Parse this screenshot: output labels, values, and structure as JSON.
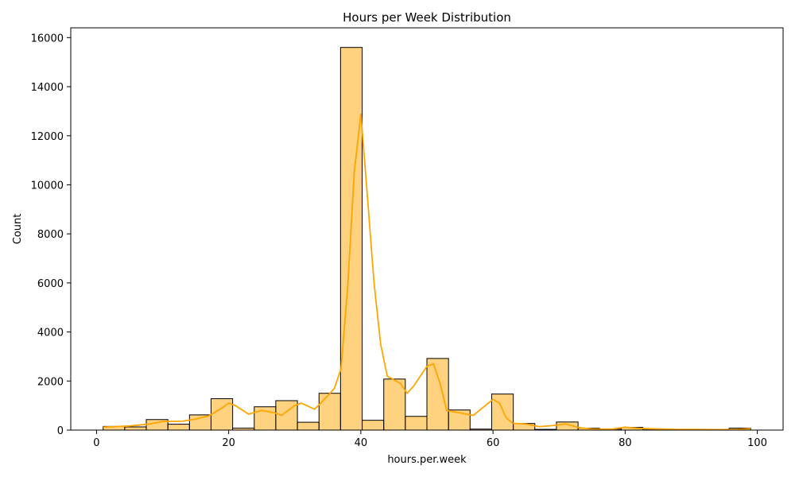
{
  "chart_data": {
    "type": "bar",
    "title": "Hours per Week Distribution",
    "xlabel": "hours.per.week",
    "ylabel": "Count",
    "xlim": [
      -3.9,
      103.9
    ],
    "ylim": [
      0,
      16400
    ],
    "xticks": [
      0,
      20,
      40,
      60,
      80,
      100
    ],
    "yticks": [
      0,
      2000,
      4000,
      6000,
      8000,
      10000,
      12000,
      14000,
      16000
    ],
    "grid": false,
    "bar_color": "#ffa500",
    "bar_edge_color": "#000000",
    "kde_color": "#ffa500",
    "bins": [
      {
        "x0": 1.0,
        "x1": 4.27,
        "count": 150
      },
      {
        "x0": 4.27,
        "x1": 7.53,
        "count": 130
      },
      {
        "x0": 7.53,
        "x1": 10.8,
        "count": 430
      },
      {
        "x0": 10.8,
        "x1": 14.07,
        "count": 240
      },
      {
        "x0": 14.07,
        "x1": 17.33,
        "count": 620
      },
      {
        "x0": 17.33,
        "x1": 20.6,
        "count": 1280
      },
      {
        "x0": 20.6,
        "x1": 23.87,
        "count": 80
      },
      {
        "x0": 23.87,
        "x1": 27.13,
        "count": 950
      },
      {
        "x0": 27.13,
        "x1": 30.4,
        "count": 1200
      },
      {
        "x0": 30.4,
        "x1": 33.67,
        "count": 320
      },
      {
        "x0": 33.67,
        "x1": 36.93,
        "count": 1500
      },
      {
        "x0": 36.93,
        "x1": 40.2,
        "count": 15600
      },
      {
        "x0": 40.2,
        "x1": 43.47,
        "count": 400
      },
      {
        "x0": 43.47,
        "x1": 46.73,
        "count": 2080
      },
      {
        "x0": 46.73,
        "x1": 50.0,
        "count": 560
      },
      {
        "x0": 50.0,
        "x1": 53.27,
        "count": 2920
      },
      {
        "x0": 53.27,
        "x1": 56.53,
        "count": 820
      },
      {
        "x0": 56.53,
        "x1": 59.8,
        "count": 40
      },
      {
        "x0": 59.8,
        "x1": 63.07,
        "count": 1470
      },
      {
        "x0": 63.07,
        "x1": 66.33,
        "count": 270
      },
      {
        "x0": 66.33,
        "x1": 69.6,
        "count": 30
      },
      {
        "x0": 69.6,
        "x1": 72.87,
        "count": 330
      },
      {
        "x0": 72.87,
        "x1": 76.13,
        "count": 80
      },
      {
        "x0": 76.13,
        "x1": 79.4,
        "count": 40
      },
      {
        "x0": 79.4,
        "x1": 82.67,
        "count": 110
      },
      {
        "x0": 82.67,
        "x1": 85.93,
        "count": 40
      },
      {
        "x0": 85.93,
        "x1": 89.2,
        "count": 15
      },
      {
        "x0": 89.2,
        "x1": 92.47,
        "count": 10
      },
      {
        "x0": 92.47,
        "x1": 95.73,
        "count": 5
      },
      {
        "x0": 95.73,
        "x1": 99.0,
        "count": 80
      }
    ],
    "kde": {
      "x": [
        1,
        5,
        8,
        10,
        13,
        15,
        17,
        19,
        20,
        21,
        23,
        25,
        27,
        28,
        30,
        31,
        33,
        35,
        36,
        37,
        38,
        39,
        40,
        41,
        42,
        43,
        44,
        46,
        47,
        48,
        50,
        51,
        52,
        53,
        55,
        57,
        60,
        61,
        62,
        63,
        65,
        67,
        69,
        71,
        73,
        75,
        78,
        80,
        82,
        85,
        88,
        91,
        94,
        97,
        99
      ],
      "y": [
        120,
        170,
        250,
        350,
        360,
        450,
        580,
        900,
        1100,
        1000,
        650,
        800,
        700,
        600,
        1000,
        1100,
        850,
        1400,
        1700,
        2500,
        5800,
        10500,
        12900,
        9500,
        6000,
        3500,
        2200,
        1900,
        1500,
        1800,
        2600,
        2700,
        1900,
        800,
        700,
        600,
        1250,
        1100,
        500,
        280,
        250,
        140,
        180,
        250,
        100,
        50,
        40,
        120,
        70,
        50,
        30,
        25,
        20,
        30,
        60
      ]
    }
  }
}
